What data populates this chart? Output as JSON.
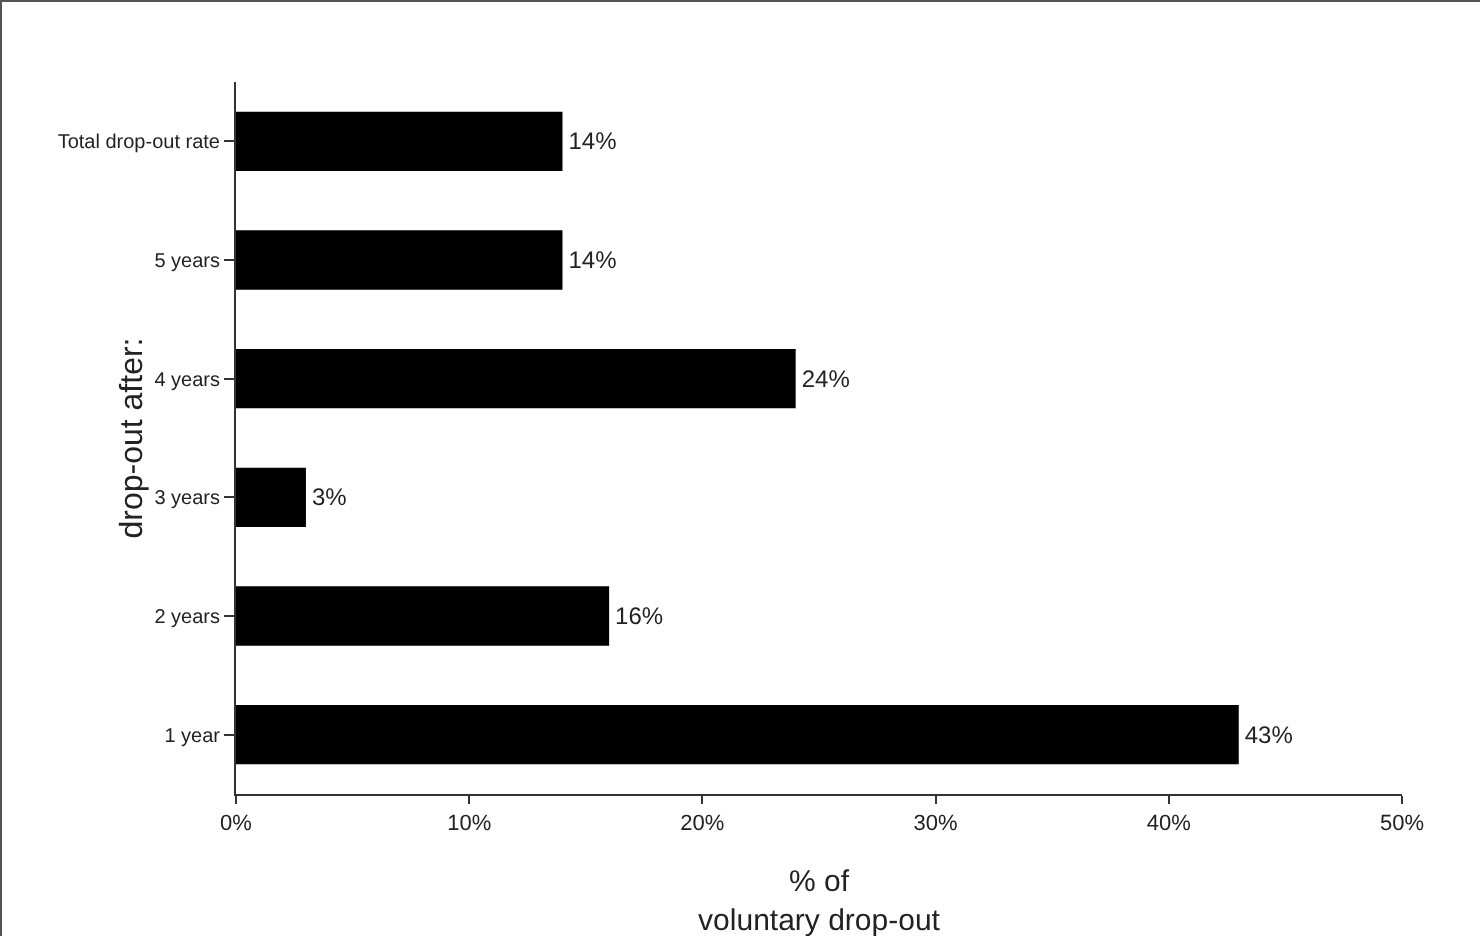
{
  "chart_data": {
    "type": "bar",
    "orientation": "horizontal",
    "categories": [
      "Total drop-out rate",
      "5 years",
      "4 years",
      "3 years",
      "2 years",
      "1 year"
    ],
    "values": [
      14,
      14,
      24,
      3,
      16,
      43
    ],
    "color": "#000000",
    "value_labels": [
      "14%",
      "14%",
      "24%",
      "3%",
      "16%",
      "43%"
    ],
    "xlim": [
      0,
      50
    ],
    "xticks": [
      {
        "value": 0,
        "label": "0%"
      },
      {
        "value": 10,
        "label": "10%"
      },
      {
        "value": 20,
        "label": "20%"
      },
      {
        "value": 30,
        "label": "30%"
      },
      {
        "value": 40,
        "label": "40%"
      },
      {
        "value": 50,
        "label": "50%"
      }
    ],
    "xlabel": "% of\nvoluntary drop-out",
    "ylabel": "drop-out after:",
    "grid": false,
    "legend": false
  }
}
